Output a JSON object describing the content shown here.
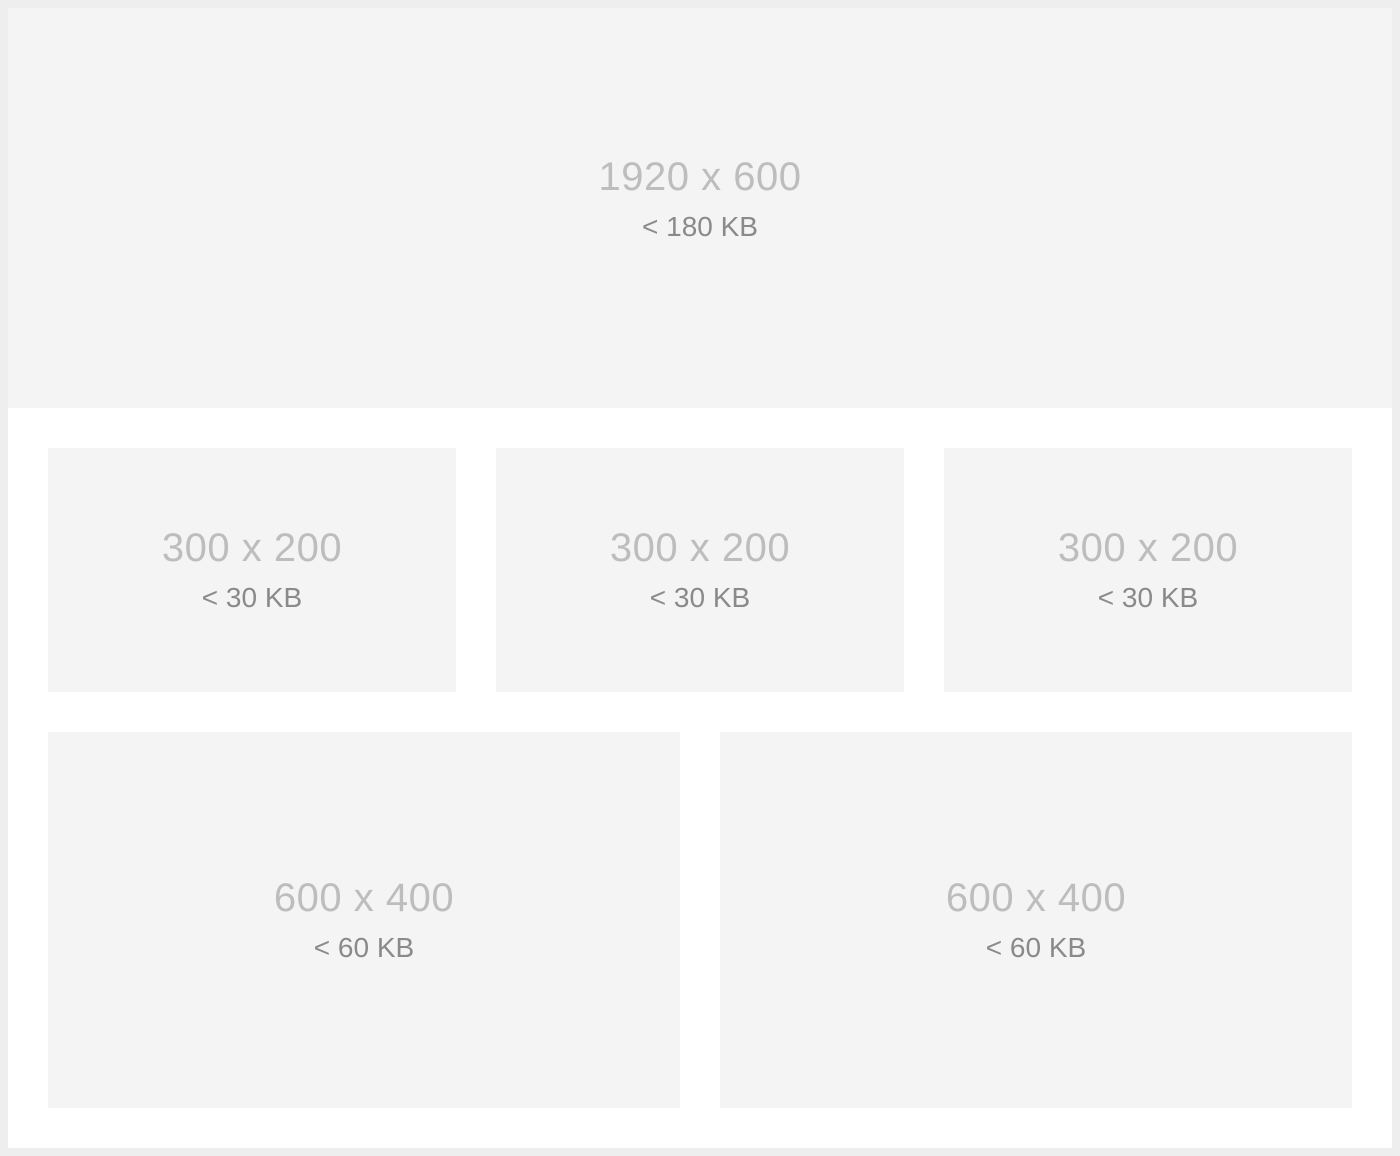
{
  "hero": {
    "dimensions": "1920 x 600",
    "max_size": "< 180 KB"
  },
  "thumbnails": [
    {
      "dimensions": "300 x 200",
      "max_size": "< 30 KB"
    },
    {
      "dimensions": "300 x 200",
      "max_size": "< 30 KB"
    },
    {
      "dimensions": "300 x 200",
      "max_size": "< 30 KB"
    }
  ],
  "mediums": [
    {
      "dimensions": "600 x 400",
      "max_size": "< 60 KB"
    },
    {
      "dimensions": "600 x 400",
      "max_size": "< 60 KB"
    }
  ]
}
